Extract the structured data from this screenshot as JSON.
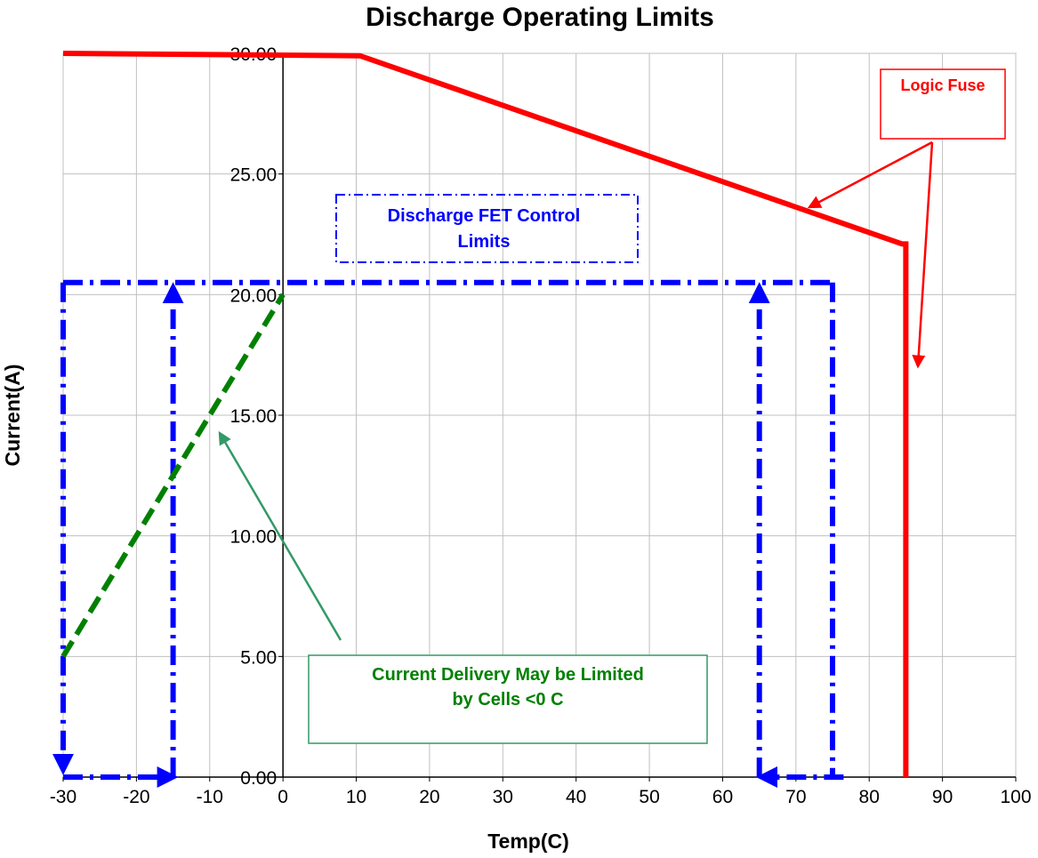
{
  "chart_data": {
    "type": "line",
    "title": "Discharge Operating Limits",
    "xlabel": "Temp(C)",
    "ylabel": "Current(A)",
    "xlim": [
      -30,
      100
    ],
    "ylim": [
      0,
      30
    ],
    "x_ticks": [
      -30,
      -20,
      -10,
      0,
      10,
      20,
      30,
      40,
      50,
      60,
      70,
      80,
      90,
      100
    ],
    "y_ticks": [
      0,
      5,
      10,
      15,
      20,
      25,
      30
    ],
    "x_tick_labels": [
      "-30",
      "-20",
      "-10",
      "0",
      "10",
      "20",
      "30",
      "40",
      "50",
      "60",
      "70",
      "80",
      "90",
      "100"
    ],
    "y_tick_labels": [
      "0.00",
      "5.00",
      "10.00",
      "15.00",
      "20.00",
      "25.00",
      "30.00"
    ],
    "grid": true,
    "series": [
      {
        "color": "#ff0000",
        "style": "solid",
        "points": [
          [
            -30,
            30
          ],
          [
            10.5,
            29.9
          ],
          [
            84.5,
            22.1
          ],
          [
            85,
            22.1
          ],
          [
            85,
            0
          ]
        ]
      },
      {
        "color": "#0000ff",
        "style": "dash-dot",
        "points": [
          [
            -30,
            20.5
          ],
          [
            75,
            20.5
          ]
        ]
      },
      {
        "color": "#0000ff",
        "style": "dash-dot",
        "points": [
          [
            -30,
            20.5
          ],
          [
            -30,
            0.3
          ]
        ],
        "arrow": "end"
      },
      {
        "color": "#0000ff",
        "style": "dash-dot",
        "points": [
          [
            -30,
            0
          ],
          [
            -15,
            0
          ]
        ],
        "arrow": "end"
      },
      {
        "color": "#0000ff",
        "style": "dash-dot",
        "points": [
          [
            -15,
            0
          ],
          [
            -15,
            20.3
          ]
        ],
        "arrow": "end"
      },
      {
        "color": "#0000ff",
        "style": "dash-dot",
        "points": [
          [
            75,
            20.5
          ],
          [
            75,
            0
          ]
        ]
      },
      {
        "color": "#0000ff",
        "style": "dash-dot",
        "points": [
          [
            76.5,
            0
          ],
          [
            65.3,
            0
          ]
        ],
        "arrow": "end"
      },
      {
        "color": "#0000ff",
        "style": "dash-dot",
        "points": [
          [
            65,
            0
          ],
          [
            65,
            20.3
          ]
        ],
        "arrow": "end"
      },
      {
        "color": "#008000",
        "style": "dashed",
        "points": [
          [
            -30,
            5
          ],
          [
            0,
            20
          ]
        ]
      }
    ],
    "annotations": [
      {
        "text": "Logic Fuse",
        "color": "#ff0000"
      },
      {
        "text": "Discharge FET Control Limits",
        "lines": [
          "Discharge FET Control",
          "Limits"
        ],
        "color": "#0000ff"
      },
      {
        "text": "Current Delivery May be Limited by Cells <0 C",
        "lines": [
          "Current Delivery May be Limited",
          "by Cells <0 C"
        ],
        "color": "#008000"
      }
    ]
  }
}
